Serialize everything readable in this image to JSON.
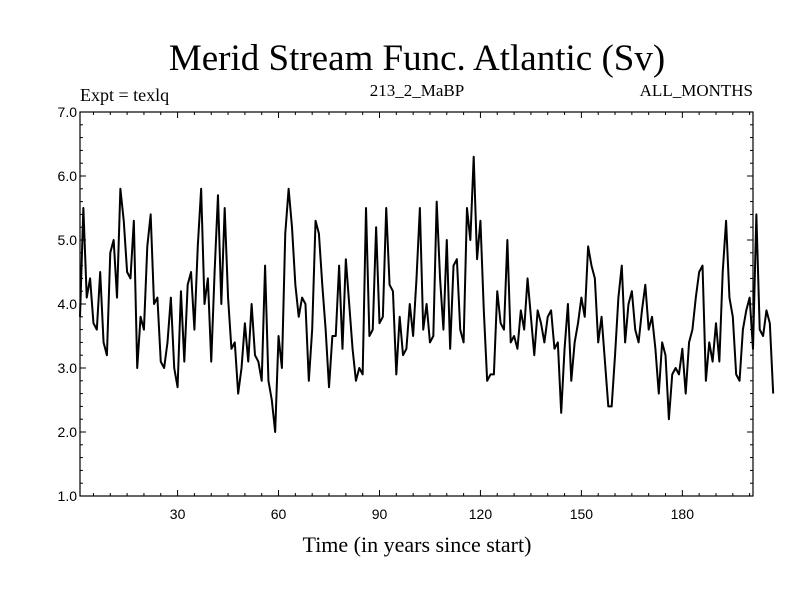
{
  "chart_data": {
    "type": "line",
    "title": "Merid Stream Func. Atlantic (Sv)",
    "subtitle_left": "Expt = texlq",
    "subtitle_center": "213_2_MaBP",
    "subtitle_right": "ALL_MONTHS",
    "xlabel": "Time (in years since start)",
    "ylabel": "",
    "xlim": [
      1,
      201
    ],
    "ylim": [
      1.0,
      7.0
    ],
    "x_ticks": [
      30,
      60,
      90,
      120,
      150,
      180
    ],
    "x_tick_labels": [
      "30",
      "60",
      "90",
      "120",
      "150",
      "180"
    ],
    "y_ticks": [
      1.0,
      2.0,
      3.0,
      4.0,
      5.0,
      6.0,
      7.0
    ],
    "y_tick_labels": [
      "1.0",
      "2.0",
      "3.0",
      "4.0",
      "5.0",
      "6.0",
      "7.0"
    ],
    "grid": false,
    "series": [
      {
        "name": "Merid Stream Func. Atlantic",
        "color": "#000000",
        "x_start": 1,
        "x_step": 1,
        "values": [
          3.8,
          5.5,
          4.1,
          4.4,
          3.7,
          3.6,
          4.5,
          3.4,
          3.2,
          4.8,
          5.0,
          4.1,
          5.8,
          5.3,
          4.5,
          4.4,
          5.3,
          3.0,
          3.8,
          3.6,
          4.9,
          5.4,
          4.0,
          4.1,
          3.1,
          3.0,
          3.4,
          4.1,
          3.0,
          2.7,
          4.2,
          3.1,
          4.3,
          4.5,
          3.6,
          4.9,
          5.8,
          4.0,
          4.4,
          3.1,
          4.5,
          5.7,
          4.0,
          5.5,
          4.1,
          3.3,
          3.4,
          2.6,
          3.0,
          3.7,
          3.1,
          4.0,
          3.2,
          3.1,
          2.8,
          4.6,
          2.8,
          2.5,
          2.0,
          3.5,
          3.0,
          5.1,
          5.8,
          5.2,
          4.3,
          3.8,
          4.1,
          4.0,
          2.8,
          3.6,
          5.3,
          5.1,
          4.3,
          3.6,
          2.7,
          3.5,
          3.5,
          4.6,
          3.3,
          4.7,
          4.0,
          3.3,
          2.8,
          3.0,
          2.9,
          5.5,
          3.5,
          3.6,
          5.2,
          3.7,
          3.8,
          5.5,
          4.3,
          4.2,
          2.9,
          3.8,
          3.2,
          3.3,
          4.0,
          3.5,
          4.4,
          5.5,
          3.6,
          4.0,
          3.4,
          3.5,
          5.6,
          4.4,
          3.6,
          5.0,
          3.3,
          4.6,
          4.7,
          3.6,
          3.4,
          5.5,
          5.0,
          6.3,
          4.7,
          5.3,
          3.9,
          2.8,
          2.9,
          2.9,
          4.2,
          3.7,
          3.6,
          5.0,
          3.4,
          3.5,
          3.3,
          3.9,
          3.6,
          4.4,
          3.8,
          3.2,
          3.9,
          3.7,
          3.4,
          3.8,
          3.9,
          3.3,
          3.4,
          2.3,
          3.3,
          4.0,
          2.8,
          3.4,
          3.7,
          4.1,
          3.8,
          4.9,
          4.6,
          4.4,
          3.4,
          3.8,
          3.1,
          2.4,
          2.4,
          3.2,
          4.1,
          4.6,
          3.4,
          4.0,
          4.2,
          3.6,
          3.4,
          3.9,
          4.3,
          3.6,
          3.8,
          3.3,
          2.6,
          3.4,
          3.2,
          2.2,
          2.9,
          3.0,
          2.9,
          3.3,
          2.6,
          3.4,
          3.6,
          4.1,
          4.5,
          4.6,
          2.8,
          3.4,
          3.1,
          3.7,
          3.1,
          4.5,
          5.3,
          4.1,
          3.8,
          2.9,
          2.8,
          3.6,
          3.9,
          4.1,
          3.3,
          5.4,
          3.6,
          3.5,
          3.9,
          3.7,
          2.6
        ]
      }
    ]
  }
}
